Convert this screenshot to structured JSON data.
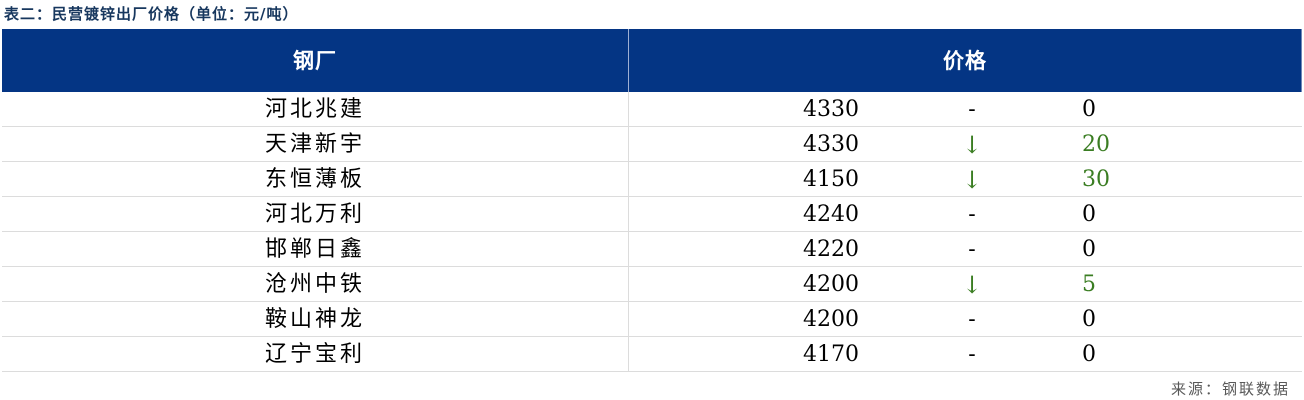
{
  "title": "表二：民营镀锌出厂价格（单位：元/吨）",
  "header": {
    "steel_mill": "钢厂",
    "price": "价格"
  },
  "rows": [
    {
      "mill": "河北兆建",
      "price": "4330",
      "trend": "-",
      "change": "0",
      "direction": "flat"
    },
    {
      "mill": "天津新宇",
      "price": "4330",
      "trend": "↓",
      "change": "20",
      "direction": "down"
    },
    {
      "mill": "东恒薄板",
      "price": "4150",
      "trend": "↓",
      "change": "30",
      "direction": "down"
    },
    {
      "mill": "河北万利",
      "price": "4240",
      "trend": "-",
      "change": "0",
      "direction": "flat"
    },
    {
      "mill": "邯郸日鑫",
      "price": "4220",
      "trend": "-",
      "change": "0",
      "direction": "flat"
    },
    {
      "mill": "沧州中铁",
      "price": "4200",
      "trend": "↓",
      "change": "5",
      "direction": "down"
    },
    {
      "mill": "鞍山神龙",
      "price": "4200",
      "trend": "-",
      "change": "0",
      "direction": "flat"
    },
    {
      "mill": "辽宁宝利",
      "price": "4170",
      "trend": "-",
      "change": "0",
      "direction": "flat"
    }
  ],
  "source": "来源：钢联数据",
  "colors": {
    "header_bg": "#043584",
    "title": "#17375e",
    "down": "#3a7d22",
    "up": "#c00000"
  }
}
